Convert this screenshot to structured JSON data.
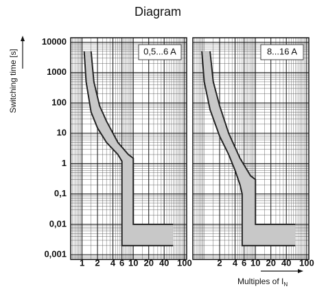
{
  "chart_data": {
    "type": "band",
    "title": "Diagram",
    "ylabel": "Switching time  [s]",
    "xlabel": "Multiples of  I",
    "xlabel_sub": "N",
    "xscale": "log",
    "yscale": "log",
    "grid": true,
    "color": "#c8c8c8",
    "line_color": "#222222",
    "ylim": [
      0.0007,
      14000
    ],
    "yticks": [
      10000,
      1000,
      100,
      10,
      1,
      {
        "value": 0.1,
        "label": "0,1"
      },
      {
        "value": 0.01,
        "label": "0,01"
      },
      {
        "value": 0.001,
        "label": "0,001"
      }
    ],
    "xlim": [
      0.6,
      110
    ],
    "panels": [
      {
        "label": "0,5...6 A",
        "xticks": [
          1,
          2,
          4,
          6,
          10,
          20,
          40,
          100
        ],
        "lower": {
          "x": [
            1.1,
            1.2,
            1.5,
            2,
            3,
            5,
            6,
            6,
            60
          ],
          "values": [
            5000,
            500,
            50,
            15,
            5,
            2,
            1.2,
            0.002,
            0.002
          ]
        },
        "upper": {
          "x": [
            1.5,
            1.7,
            2.2,
            3,
            5,
            8,
            10,
            10,
            60
          ],
          "values": [
            5000,
            500,
            80,
            25,
            5,
            2,
            1.5,
            0.01,
            0.01
          ]
        }
      },
      {
        "label": "8...16 A",
        "xticks": [
          2,
          4,
          6,
          10,
          20,
          40,
          100
        ],
        "lower": {
          "x": [
            0.9,
            1,
            1.3,
            2,
            3,
            4,
            5,
            5.5,
            5.5,
            60
          ],
          "values": [
            5000,
            500,
            60,
            8,
            2,
            0.6,
            0.2,
            0.1,
            0.002,
            0.002
          ]
        },
        "upper": {
          "x": [
            1.3,
            1.5,
            2,
            3,
            5,
            8,
            10,
            10,
            60
          ],
          "values": [
            5000,
            500,
            80,
            10,
            1.5,
            0.4,
            0.3,
            0.01,
            0.01
          ]
        }
      }
    ]
  }
}
